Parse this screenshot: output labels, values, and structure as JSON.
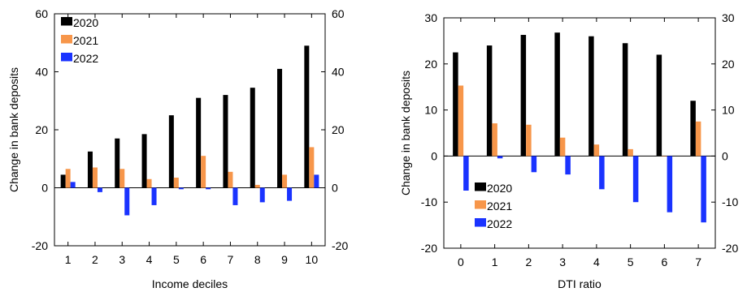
{
  "colors": {
    "2020": "#000000",
    "2021": "#f7964a",
    "2022": "#1a33ff",
    "axis": "#000000"
  },
  "chart_data": [
    {
      "type": "bar",
      "xlabel": "Income deciles",
      "ylabel": "Change in bank deposits",
      "categories": [
        "1",
        "2",
        "3",
        "4",
        "5",
        "6",
        "7",
        "8",
        "9",
        "10"
      ],
      "ylim": [
        -20,
        60
      ],
      "yticks": [
        "-20",
        "0",
        "20",
        "40",
        "60"
      ],
      "yticks_right": [
        "-20",
        "0",
        "20",
        "40",
        "60"
      ],
      "legend_position": "top-left",
      "grid": false,
      "series": [
        {
          "name": "2020",
          "values": [
            4.5,
            12.5,
            17,
            18.5,
            25,
            31,
            32,
            34.5,
            41,
            49
          ]
        },
        {
          "name": "2021",
          "values": [
            6.5,
            7,
            6.5,
            3,
            3.5,
            11,
            5.5,
            1,
            4.5,
            14
          ]
        },
        {
          "name": "2022",
          "values": [
            2,
            -1.5,
            -9.5,
            -6,
            -0.5,
            -0.5,
            -6,
            -5,
            -4.5,
            4.5
          ]
        }
      ]
    },
    {
      "type": "bar",
      "xlabel": "DTI ratio",
      "ylabel": "Change in bank deposits",
      "categories": [
        "0",
        "1",
        "2",
        "3",
        "4",
        "5",
        "6",
        "7"
      ],
      "ylim": [
        -20,
        30
      ],
      "yticks": [
        "-20",
        "-10",
        "0",
        "10",
        "20",
        "30"
      ],
      "yticks_right": [
        "-20",
        "-10",
        "0",
        "10",
        "20",
        "30"
      ],
      "legend_position": "bottom-left",
      "grid": false,
      "series": [
        {
          "name": "2020",
          "values": [
            22.5,
            24,
            26.3,
            26.8,
            26,
            24.5,
            22,
            12
          ]
        },
        {
          "name": "2021",
          "values": [
            15.3,
            7.1,
            6.8,
            4,
            2.5,
            1.5,
            0,
            7.5
          ]
        },
        {
          "name": "2022",
          "values": [
            -7.5,
            -0.5,
            -3.5,
            -4,
            -7.2,
            -10,
            -12.2,
            -14.4
          ]
        }
      ]
    }
  ]
}
